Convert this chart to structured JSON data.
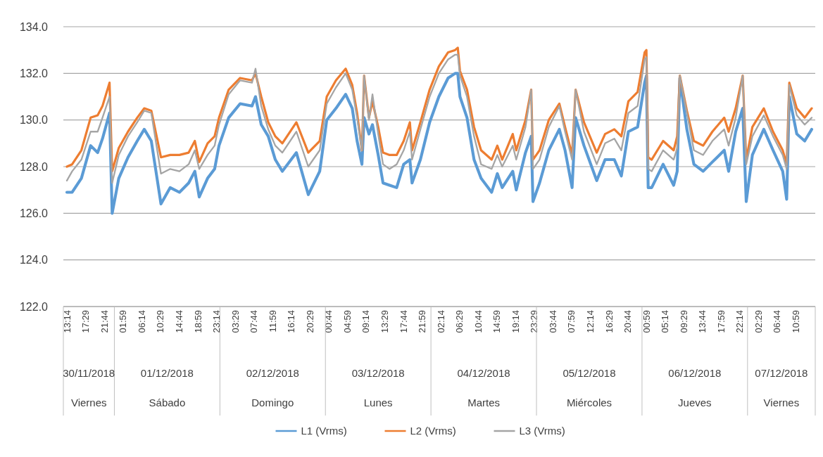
{
  "chart_data": {
    "type": "line",
    "x": [
      "2018-11-30T13:12",
      "2018-11-30T14:24",
      "2018-11-30T16:30",
      "2018-11-30T18:36",
      "2018-11-30T20:12",
      "2018-11-30T21:18",
      "2018-11-30T22:54",
      "2018-11-30T23:30",
      "2018-12-01T01:00",
      "2018-12-01T03:06",
      "2018-12-01T05:12",
      "2018-12-01T06:48",
      "2018-12-01T08:24",
      "2018-12-01T10:36",
      "2018-12-01T12:42",
      "2018-12-01T14:48",
      "2018-12-01T16:54",
      "2018-12-01T18:18",
      "2018-12-01T19:18",
      "2018-12-01T21:12",
      "2018-12-01T22:48",
      "2018-12-01T23:48",
      "2018-12-02T02:00",
      "2018-12-02T04:36",
      "2018-12-02T07:18",
      "2018-12-02T08:06",
      "2018-12-02T09:24",
      "2018-12-02T11:00",
      "2018-12-02T12:36",
      "2018-12-02T14:12",
      "2018-12-02T17:24",
      "2018-12-02T20:06",
      "2018-12-02T22:42",
      "2018-12-03T00:18",
      "2018-12-03T02:24",
      "2018-12-03T04:36",
      "2018-12-03T06:06",
      "2018-12-03T07:12",
      "2018-12-03T08:18",
      "2018-12-03T08:48",
      "2018-12-03T09:54",
      "2018-12-03T10:42",
      "2018-12-03T12:00",
      "2018-12-03T13:06",
      "2018-12-03T14:36",
      "2018-12-03T16:12",
      "2018-12-03T17:48",
      "2018-12-03T19:12",
      "2018-12-03T19:42",
      "2018-12-03T21:36",
      "2018-12-03T23:42",
      "2018-12-04T01:48",
      "2018-12-04T03:54",
      "2018-12-04T05:30",
      "2018-12-04T06:06",
      "2018-12-04T06:36",
      "2018-12-04T08:12",
      "2018-12-04T09:48",
      "2018-12-04T11:24",
      "2018-12-04T13:48",
      "2018-12-04T15:06",
      "2018-12-04T16:12",
      "2018-12-04T18:36",
      "2018-12-04T19:24",
      "2018-12-04T21:30",
      "2018-12-04T22:48",
      "2018-12-04T23:12",
      "2018-12-05T00:42",
      "2018-12-05T02:48",
      "2018-12-05T05:12",
      "2018-12-05T06:30",
      "2018-12-05T08:06",
      "2018-12-05T08:54",
      "2018-12-05T10:48",
      "2018-12-05T13:42",
      "2018-12-05T15:36",
      "2018-12-05T17:42",
      "2018-12-05T19:18",
      "2018-12-05T20:54",
      "2018-12-05T23:00",
      "2018-12-06T00:36",
      "2018-12-06T01:00",
      "2018-12-06T01:24",
      "2018-12-06T02:12",
      "2018-12-06T04:48",
      "2018-12-06T07:12",
      "2018-12-06T08:00",
      "2018-12-06T08:36",
      "2018-12-06T10:12",
      "2018-12-06T11:48",
      "2018-12-06T13:54",
      "2018-12-06T16:00",
      "2018-12-06T18:42",
      "2018-12-06T19:42",
      "2018-12-06T21:18",
      "2018-12-06T22:54",
      "2018-12-06T23:42",
      "2018-12-07T01:06",
      "2018-12-07T03:42",
      "2018-12-07T05:48",
      "2018-12-07T08:00",
      "2018-12-07T08:54",
      "2018-12-07T09:30",
      "2018-12-07T11:12",
      "2018-12-07T13:00",
      "2018-12-07T14:36"
    ],
    "series": [
      {
        "name": "L1 (Vrms)",
        "color": "#5b9bd5",
        "values": [
          126.9,
          126.9,
          127.5,
          128.9,
          128.6,
          129.2,
          130.3,
          126.0,
          127.5,
          128.4,
          129.1,
          129.6,
          129.1,
          126.4,
          127.1,
          126.9,
          127.3,
          127.8,
          126.7,
          127.5,
          127.9,
          128.9,
          130.1,
          130.7,
          130.6,
          131.0,
          129.8,
          129.3,
          128.3,
          127.8,
          128.6,
          126.8,
          127.8,
          130.0,
          130.5,
          131.1,
          130.5,
          129.1,
          128.1,
          130.1,
          129.4,
          129.8,
          128.5,
          127.3,
          127.2,
          127.1,
          128.1,
          128.3,
          127.3,
          128.3,
          129.9,
          131.0,
          131.8,
          132.0,
          132.0,
          131.0,
          130.1,
          128.3,
          127.5,
          126.9,
          127.7,
          127.1,
          127.8,
          127.0,
          128.6,
          129.3,
          126.5,
          127.3,
          128.7,
          129.6,
          128.7,
          127.1,
          130.1,
          128.9,
          127.4,
          128.3,
          128.3,
          127.6,
          129.5,
          129.7,
          131.6,
          131.9,
          127.1,
          127.1,
          128.1,
          127.2,
          127.8,
          131.8,
          129.6,
          128.1,
          127.8,
          128.2,
          128.7,
          127.8,
          129.5,
          130.5,
          126.5,
          128.5,
          129.6,
          128.7,
          127.8,
          126.6,
          131.0,
          129.4,
          129.1,
          129.6
        ]
      },
      {
        "name": "L2 (Vrms)",
        "color": "#ed7d31",
        "values": [
          128.0,
          128.1,
          128.7,
          130.1,
          130.2,
          130.6,
          131.6,
          127.8,
          128.8,
          129.5,
          130.1,
          130.5,
          130.4,
          128.4,
          128.5,
          128.5,
          128.6,
          129.1,
          128.2,
          129.0,
          129.3,
          130.1,
          131.3,
          131.8,
          131.7,
          132.0,
          131.0,
          129.9,
          129.3,
          129.0,
          129.9,
          128.6,
          129.1,
          131.0,
          131.7,
          132.2,
          131.5,
          130.3,
          128.7,
          131.9,
          130.1,
          130.8,
          129.7,
          128.6,
          128.5,
          128.5,
          129.1,
          129.9,
          128.7,
          129.9,
          131.3,
          132.3,
          132.9,
          133.0,
          133.1,
          132.1,
          131.3,
          129.7,
          128.7,
          128.3,
          128.9,
          128.3,
          129.4,
          128.7,
          130.0,
          131.3,
          128.3,
          128.7,
          130.0,
          130.7,
          129.7,
          128.5,
          131.3,
          129.9,
          128.6,
          129.4,
          129.6,
          129.3,
          130.8,
          131.2,
          132.9,
          133.0,
          128.4,
          128.3,
          129.1,
          128.7,
          129.3,
          131.9,
          130.4,
          129.1,
          128.9,
          129.5,
          130.1,
          129.5,
          130.5,
          131.9,
          128.3,
          129.7,
          130.5,
          129.5,
          128.7,
          128.1,
          131.6,
          130.5,
          130.1,
          130.5
        ]
      },
      {
        "name": "L3 (Vrms)",
        "color": "#a5a5a5",
        "values": [
          127.4,
          127.8,
          128.3,
          129.5,
          129.5,
          130.1,
          131.0,
          127.3,
          128.5,
          129.3,
          129.9,
          130.4,
          130.3,
          127.7,
          127.9,
          127.8,
          128.1,
          128.7,
          127.9,
          128.5,
          128.9,
          129.8,
          131.1,
          131.7,
          131.6,
          132.2,
          130.6,
          129.6,
          128.9,
          128.6,
          129.5,
          128.0,
          128.7,
          130.7,
          131.4,
          132.0,
          131.3,
          130.1,
          128.7,
          131.9,
          130.0,
          131.1,
          129.4,
          128.1,
          127.9,
          128.1,
          128.7,
          129.5,
          128.3,
          129.6,
          131.0,
          132.0,
          132.6,
          132.8,
          132.8,
          131.9,
          131.0,
          129.3,
          128.1,
          127.9,
          128.5,
          128.0,
          128.9,
          128.3,
          129.7,
          131.3,
          127.9,
          128.3,
          129.7,
          130.6,
          129.5,
          128.3,
          131.3,
          129.5,
          128.1,
          129.0,
          129.2,
          128.7,
          130.3,
          130.6,
          132.6,
          132.7,
          127.9,
          127.8,
          128.7,
          128.3,
          128.8,
          131.9,
          130.3,
          128.7,
          128.5,
          129.1,
          129.6,
          128.9,
          130.1,
          131.9,
          128.1,
          129.3,
          130.2,
          129.3,
          128.5,
          127.9,
          131.5,
          130.2,
          129.8,
          130.1
        ]
      }
    ],
    "xlim": [
      "2018-11-30T12:24",
      "2018-12-07T15:24"
    ],
    "xticks": [
      {
        "value": "2018-11-30T13:14",
        "label": "13:14"
      },
      {
        "value": "2018-11-30T17:29",
        "label": "17:29"
      },
      {
        "value": "2018-11-30T21:44",
        "label": "21:44"
      },
      {
        "value": "2018-12-01T01:59",
        "label": "01:59"
      },
      {
        "value": "2018-12-01T06:14",
        "label": "06:14"
      },
      {
        "value": "2018-12-01T10:29",
        "label": "10:29"
      },
      {
        "value": "2018-12-01T14:44",
        "label": "14:44"
      },
      {
        "value": "2018-12-01T18:59",
        "label": "18:59"
      },
      {
        "value": "2018-12-01T23:14",
        "label": "23:14"
      },
      {
        "value": "2018-12-02T03:29",
        "label": "03:29"
      },
      {
        "value": "2018-12-02T07:44",
        "label": "07:44"
      },
      {
        "value": "2018-12-02T11:59",
        "label": "11:59"
      },
      {
        "value": "2018-12-02T16:14",
        "label": "16:14"
      },
      {
        "value": "2018-12-02T20:29",
        "label": "20:29"
      },
      {
        "value": "2018-12-03T00:44",
        "label": "00:44"
      },
      {
        "value": "2018-12-03T04:59",
        "label": "04:59"
      },
      {
        "value": "2018-12-03T09:14",
        "label": "09:14"
      },
      {
        "value": "2018-12-03T13:29",
        "label": "13:29"
      },
      {
        "value": "2018-12-03T17:44",
        "label": "17:44"
      },
      {
        "value": "2018-12-03T21:59",
        "label": "21:59"
      },
      {
        "value": "2018-12-04T02:14",
        "label": "02:14"
      },
      {
        "value": "2018-12-04T06:29",
        "label": "06:29"
      },
      {
        "value": "2018-12-04T10:44",
        "label": "10:44"
      },
      {
        "value": "2018-12-04T14:59",
        "label": "14:59"
      },
      {
        "value": "2018-12-04T19:14",
        "label": "19:14"
      },
      {
        "value": "2018-12-04T23:29",
        "label": "23:29"
      },
      {
        "value": "2018-12-05T03:44",
        "label": "03:44"
      },
      {
        "value": "2018-12-05T07:59",
        "label": "07:59"
      },
      {
        "value": "2018-12-05T12:14",
        "label": "12:14"
      },
      {
        "value": "2018-12-05T16:29",
        "label": "16:29"
      },
      {
        "value": "2018-12-05T20:44",
        "label": "20:44"
      },
      {
        "value": "2018-12-06T00:59",
        "label": "00:59"
      },
      {
        "value": "2018-12-06T05:14",
        "label": "05:14"
      },
      {
        "value": "2018-12-06T09:29",
        "label": "09:29"
      },
      {
        "value": "2018-12-06T13:44",
        "label": "13:44"
      },
      {
        "value": "2018-12-06T17:59",
        "label": "17:59"
      },
      {
        "value": "2018-12-06T22:14",
        "label": "22:14"
      },
      {
        "value": "2018-12-07T02:29",
        "label": "02:29"
      },
      {
        "value": "2018-12-07T06:44",
        "label": "06:44"
      },
      {
        "value": "2018-12-07T10:59",
        "label": "10:59"
      }
    ],
    "ylim": [
      122,
      134
    ],
    "yticks": [
      {
        "value": 122,
        "label": "122.0"
      },
      {
        "value": 124,
        "label": "124.0"
      },
      {
        "value": 126,
        "label": "126.0"
      },
      {
        "value": 128,
        "label": "128.0"
      },
      {
        "value": 130,
        "label": "130.0"
      },
      {
        "value": 132,
        "label": "132.0"
      },
      {
        "value": 134,
        "label": "134.0"
      }
    ],
    "grid": "y",
    "legend": "bottom",
    "annotations": [
      "30/11/2018",
      "Viernes",
      "01/12/2018",
      "Sábado",
      "02/12/2018",
      "Domingo",
      "03/12/2018",
      "Lunes",
      "04/12/2018",
      "Martes",
      "05/12/2018",
      "Miércoles",
      "06/12/2018",
      "Jueves",
      "07/12/2018",
      "Viernes"
    ]
  }
}
